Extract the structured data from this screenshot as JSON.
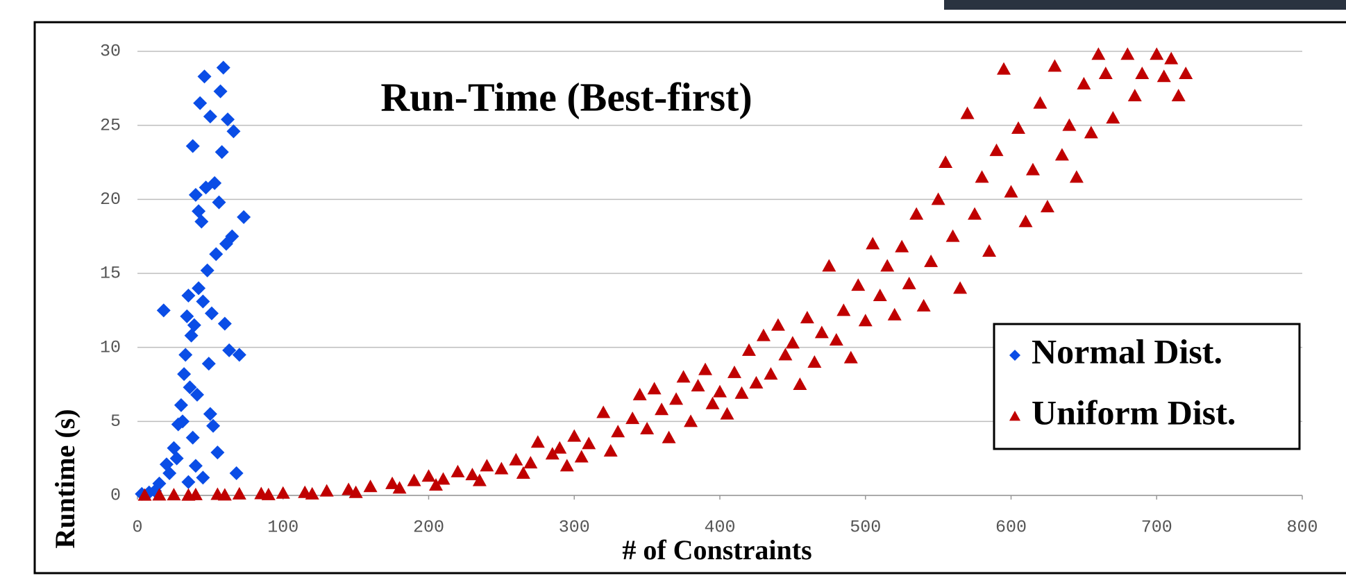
{
  "chart_data": {
    "type": "scatter",
    "title": "Run-Time (Best-first)",
    "x_label": "# of Constraints",
    "y_label": "Runtime (s)",
    "xlim": [
      0,
      800
    ],
    "xticks": [
      0,
      100,
      200,
      300,
      400,
      500,
      600,
      700,
      800
    ],
    "ylim": [
      0,
      30
    ],
    "yticks": [
      0,
      5,
      10,
      15,
      20,
      25,
      30
    ],
    "grid": true,
    "legend": "right",
    "series": [
      {
        "name": "Normal Dist.",
        "color": "#0a4de6",
        "marker": "diamond",
        "x": [
          3,
          8,
          12,
          15,
          18,
          20,
          22,
          25,
          27,
          28,
          30,
          31,
          32,
          33,
          34,
          35,
          36,
          37,
          38,
          38,
          39,
          40,
          41,
          42,
          43,
          44,
          45,
          46,
          47,
          48,
          49,
          50,
          51,
          52,
          53,
          54,
          55,
          56,
          57,
          58,
          59,
          60,
          61,
          62,
          63,
          65,
          66,
          68,
          70,
          73,
          35,
          45,
          40,
          50,
          42
        ],
        "values": [
          0.1,
          0.2,
          0.3,
          0.8,
          12.5,
          2.1,
          1.5,
          3.2,
          2.5,
          4.8,
          6.1,
          5.0,
          8.2,
          9.5,
          12.1,
          13.5,
          7.3,
          10.8,
          23.6,
          3.9,
          11.5,
          20.3,
          6.8,
          19.2,
          26.5,
          18.5,
          13.1,
          28.3,
          20.8,
          15.2,
          8.9,
          25.6,
          12.3,
          4.7,
          21.1,
          16.3,
          2.9,
          19.8,
          27.3,
          23.2,
          28.9,
          11.6,
          17.0,
          25.4,
          9.8,
          17.5,
          24.6,
          1.5,
          9.5,
          18.8,
          0.9,
          1.2,
          2.0,
          5.5,
          14.0
        ]
      },
      {
        "name": "Uniform Dist.",
        "color": "#c00000",
        "marker": "triangle",
        "x": [
          5,
          15,
          25,
          40,
          55,
          70,
          85,
          100,
          115,
          130,
          145,
          160,
          175,
          190,
          200,
          210,
          220,
          230,
          240,
          250,
          260,
          270,
          275,
          285,
          290,
          300,
          305,
          310,
          320,
          325,
          330,
          340,
          345,
          350,
          355,
          360,
          365,
          370,
          375,
          380,
          385,
          390,
          395,
          400,
          405,
          410,
          415,
          420,
          425,
          430,
          435,
          440,
          445,
          450,
          455,
          460,
          465,
          470,
          475,
          480,
          485,
          490,
          495,
          500,
          505,
          510,
          515,
          520,
          525,
          530,
          535,
          540,
          545,
          550,
          555,
          560,
          565,
          570,
          575,
          580,
          585,
          590,
          595,
          600,
          605,
          610,
          615,
          620,
          625,
          630,
          635,
          640,
          645,
          650,
          655,
          660,
          665,
          670,
          680,
          685,
          690,
          700,
          705,
          710,
          715,
          720,
          35,
          60,
          90,
          120,
          150,
          180,
          205,
          235,
          265,
          295
        ],
        "values": [
          0.02,
          0.03,
          0.04,
          0.05,
          0.07,
          0.1,
          0.12,
          0.15,
          0.2,
          0.3,
          0.4,
          0.6,
          0.8,
          1.0,
          1.3,
          1.1,
          1.6,
          1.4,
          2.0,
          1.8,
          2.4,
          2.2,
          3.6,
          2.8,
          3.2,
          4.0,
          2.6,
          3.5,
          5.6,
          3.0,
          4.3,
          5.2,
          6.8,
          4.5,
          7.2,
          5.8,
          3.9,
          6.5,
          8.0,
          5.0,
          7.4,
          8.5,
          6.2,
          7.0,
          5.5,
          8.3,
          6.9,
          9.8,
          7.6,
          10.8,
          8.2,
          11.5,
          9.5,
          10.3,
          7.5,
          12.0,
          9.0,
          11.0,
          15.5,
          10.5,
          12.5,
          9.3,
          14.2,
          11.8,
          17.0,
          13.5,
          15.5,
          12.2,
          16.8,
          14.3,
          19.0,
          12.8,
          15.8,
          20.0,
          22.5,
          17.5,
          14.0,
          25.8,
          19.0,
          21.5,
          16.5,
          23.3,
          28.8,
          20.5,
          24.8,
          18.5,
          22.0,
          26.5,
          19.5,
          29.0,
          23.0,
          25.0,
          21.5,
          27.8,
          24.5,
          29.8,
          28.5,
          25.5,
          29.8,
          27.0,
          28.5,
          29.8,
          28.3,
          29.5,
          27.0,
          28.5,
          0.02,
          0.03,
          0.05,
          0.1,
          0.2,
          0.5,
          0.7,
          1.0,
          1.5,
          2.0
        ]
      }
    ]
  }
}
